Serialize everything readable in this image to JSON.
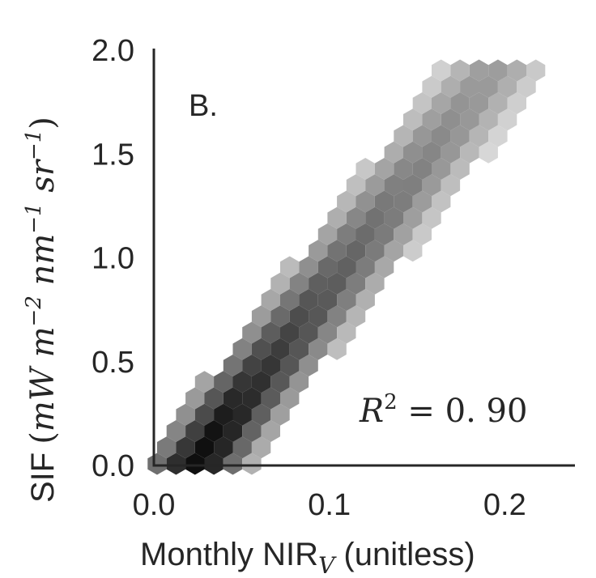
{
  "chart_data": {
    "type": "heatmap",
    "subtype": "hexbin",
    "colormap": "greys",
    "panel_label": "B.",
    "annotation": {
      "prefix": "R",
      "exponent": "2",
      "text": " = 0. 90"
    },
    "xlabel": {
      "main": "Monthly NIR",
      "sub": "V",
      "suffix": " (unitless)"
    },
    "ylabel": {
      "prefix": "SIF",
      "units": {
        "open": "(",
        "a": "mW m",
        "a_exp": "−2",
        "b": " nm",
        "b_exp": "−1",
        "c": " sr",
        "c_exp": "−1",
        "close": ")"
      }
    },
    "xlim": [
      0,
      0.24
    ],
    "ylim": [
      0,
      2.0
    ],
    "xticks": [
      0.0,
      0.1,
      0.2
    ],
    "yticks": [
      0.0,
      0.5,
      1.0,
      1.5,
      2.0
    ],
    "xtick_labels": [
      "0.0",
      "0.1",
      "0.2"
    ],
    "ytick_labels": [
      "0.0",
      "0.5",
      "1.0",
      "1.5",
      "2.0"
    ],
    "density_model": {
      "ridge_slope": 11.1,
      "ridge_intercept": -0.26,
      "x_peak": 0.035,
      "x_spread": 0.072,
      "residual_sd": 0.155,
      "envelope_sd": 2.3
    },
    "grid": false,
    "legend": "none"
  }
}
